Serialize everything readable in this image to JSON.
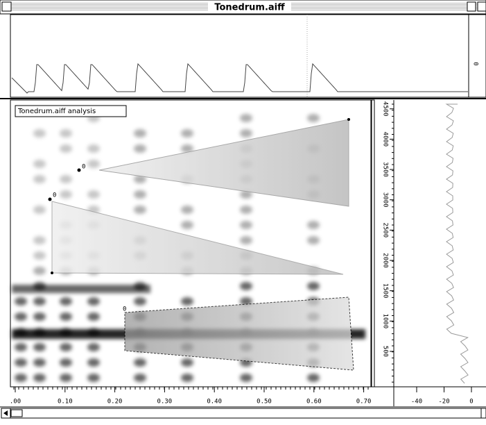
{
  "window": {
    "title": "Tonedrum.aiff"
  },
  "waveform": {
    "axis_label": "0"
  },
  "spectrogram": {
    "label": "Tonedrum.aiff analysis",
    "marker_label": "0",
    "xticks": [
      {
        "value": 0,
        "label": ".00"
      },
      {
        "value": 0.1,
        "label": "0.10"
      },
      {
        "value": 0.2,
        "label": "0.20"
      },
      {
        "value": 0.3,
        "label": "0.30"
      },
      {
        "value": 0.4,
        "label": "0.40"
      },
      {
        "value": 0.5,
        "label": "0.50"
      },
      {
        "value": 0.6,
        "label": "0.60"
      },
      {
        "value": 0.7,
        "label": "0.70"
      }
    ],
    "yticks": [
      500,
      1000,
      1500,
      2000,
      2500,
      3000,
      3500,
      4000,
      4500
    ]
  },
  "amplitude": {
    "xticks": [
      -40,
      -20,
      0
    ]
  }
}
